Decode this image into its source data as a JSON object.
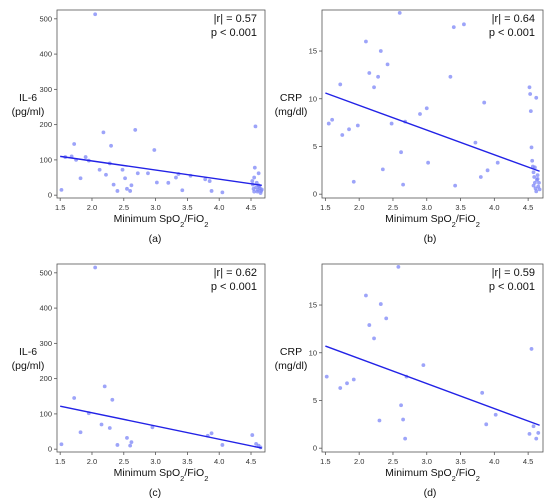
{
  "chart_data": [
    {
      "panel": "(a)",
      "type": "scatter",
      "xlabel": "Minimum SpO2/FiO2",
      "ylabel": "IL-6\n(pg/ml)",
      "xlim": [
        1.45,
        4.72
      ],
      "ylim": [
        -8,
        525
      ],
      "xticks": [
        1.5,
        2.0,
        2.5,
        3.0,
        3.5,
        4.0,
        4.5
      ],
      "yticks": [
        0,
        100,
        200,
        300,
        400,
        500
      ],
      "annotation": [
        "|r| = 0.57",
        "p < 0.001"
      ],
      "fit_line": {
        "x": [
          1.5,
          4.67
        ],
        "y": [
          110,
          28
        ]
      },
      "points": [
        [
          1.52,
          15
        ],
        [
          1.58,
          108
        ],
        [
          1.68,
          110
        ],
        [
          1.72,
          145
        ],
        [
          1.75,
          100
        ],
        [
          1.82,
          48
        ],
        [
          1.9,
          108
        ],
        [
          1.95,
          98
        ],
        [
          2.05,
          513
        ],
        [
          2.12,
          72
        ],
        [
          2.18,
          178
        ],
        [
          2.22,
          58
        ],
        [
          2.28,
          90
        ],
        [
          2.3,
          140
        ],
        [
          2.34,
          30
        ],
        [
          2.4,
          12
        ],
        [
          2.48,
          72
        ],
        [
          2.52,
          48
        ],
        [
          2.55,
          18
        ],
        [
          2.6,
          12
        ],
        [
          2.62,
          28
        ],
        [
          2.68,
          185
        ],
        [
          2.72,
          62
        ],
        [
          2.88,
          62
        ],
        [
          2.98,
          128
        ],
        [
          3.02,
          36
        ],
        [
          3.2,
          35
        ],
        [
          3.32,
          50
        ],
        [
          3.36,
          60
        ],
        [
          3.42,
          14
        ],
        [
          3.55,
          55
        ],
        [
          3.78,
          45
        ],
        [
          3.85,
          40
        ],
        [
          3.88,
          12
        ],
        [
          4.05,
          8
        ],
        [
          4.52,
          40
        ],
        [
          4.53,
          30
        ],
        [
          4.54,
          18
        ],
        [
          4.55,
          50
        ],
        [
          4.56,
          78
        ],
        [
          4.57,
          195
        ],
        [
          4.58,
          22
        ],
        [
          4.6,
          10
        ],
        [
          4.61,
          15
        ],
        [
          4.62,
          28
        ],
        [
          4.63,
          25
        ],
        [
          4.64,
          20
        ],
        [
          4.65,
          6
        ],
        [
          4.66,
          12
        ],
        [
          4.67,
          16
        ],
        [
          4.55,
          10
        ],
        [
          4.59,
          35
        ],
        [
          4.62,
          62
        ]
      ]
    },
    {
      "panel": "(b)",
      "type": "scatter",
      "xlabel": "Minimum SpO2/FiO2",
      "ylabel": "CRP\n(mg/dl)",
      "xlim": [
        1.45,
        4.72
      ],
      "ylim": [
        -0.4,
        19.3
      ],
      "xticks": [
        1.5,
        2.0,
        2.5,
        3.0,
        3.5,
        4.0,
        4.5
      ],
      "yticks": [
        0,
        5,
        10,
        15
      ],
      "annotation": [
        "|r| = 0.64",
        "p < 0.001"
      ],
      "fit_line": {
        "x": [
          1.5,
          4.67
        ],
        "y": [
          10.6,
          2.4
        ]
      },
      "points": [
        [
          1.55,
          7.4
        ],
        [
          1.6,
          7.8
        ],
        [
          1.72,
          11.5
        ],
        [
          1.75,
          6.2
        ],
        [
          1.85,
          6.8
        ],
        [
          1.92,
          1.3
        ],
        [
          1.98,
          7.2
        ],
        [
          2.1,
          16
        ],
        [
          2.15,
          12.7
        ],
        [
          2.22,
          11.2
        ],
        [
          2.28,
          12.3
        ],
        [
          2.32,
          15
        ],
        [
          2.35,
          2.6
        ],
        [
          2.42,
          13.6
        ],
        [
          2.48,
          7.4
        ],
        [
          2.6,
          19
        ],
        [
          2.62,
          4.4
        ],
        [
          2.65,
          1
        ],
        [
          2.68,
          7.6
        ],
        [
          2.9,
          8.4
        ],
        [
          3.0,
          9
        ],
        [
          3.02,
          3.3
        ],
        [
          3.35,
          12.3
        ],
        [
          3.4,
          17.5
        ],
        [
          3.42,
          0.9
        ],
        [
          3.55,
          17.8
        ],
        [
          3.72,
          5.4
        ],
        [
          3.8,
          1.8
        ],
        [
          3.85,
          9.6
        ],
        [
          3.9,
          2.5
        ],
        [
          4.05,
          3.3
        ],
        [
          4.52,
          11.2
        ],
        [
          4.53,
          10.5
        ],
        [
          4.54,
          8.7
        ],
        [
          4.55,
          4.9
        ],
        [
          4.56,
          3.5
        ],
        [
          4.57,
          2.9
        ],
        [
          4.58,
          2.3
        ],
        [
          4.59,
          1.8
        ],
        [
          4.6,
          1.2
        ],
        [
          4.61,
          0.6
        ],
        [
          4.62,
          0.3
        ],
        [
          4.63,
          1.5
        ],
        [
          4.64,
          2
        ],
        [
          4.65,
          0.8
        ],
        [
          4.66,
          1.2
        ],
        [
          4.67,
          0.5
        ],
        [
          4.58,
          0.9
        ],
        [
          4.6,
          2.8
        ],
        [
          4.62,
          10.1
        ],
        [
          4.64,
          1.6
        ]
      ]
    },
    {
      "panel": "(c)",
      "type": "scatter",
      "xlabel": "Minimum SpO2/FiO2",
      "ylabel": "IL-6\n(pg/ml)",
      "xlim": [
        1.45,
        4.72
      ],
      "ylim": [
        -8,
        525
      ],
      "xticks": [
        1.5,
        2.0,
        2.5,
        3.0,
        3.5,
        4.0,
        4.5
      ],
      "yticks": [
        0,
        100,
        200,
        300,
        400,
        500
      ],
      "annotation": [
        "|r| = 0.62",
        "p < 0.001"
      ],
      "fit_line": {
        "x": [
          1.5,
          4.67
        ],
        "y": [
          122,
          3
        ]
      },
      "points": [
        [
          1.52,
          14
        ],
        [
          1.72,
          145
        ],
        [
          1.82,
          48
        ],
        [
          1.95,
          102
        ],
        [
          2.05,
          515
        ],
        [
          2.15,
          70
        ],
        [
          2.2,
          178
        ],
        [
          2.28,
          60
        ],
        [
          2.32,
          140
        ],
        [
          2.4,
          12
        ],
        [
          2.55,
          32
        ],
        [
          2.6,
          10
        ],
        [
          2.62,
          20
        ],
        [
          2.95,
          62
        ],
        [
          3.82,
          38
        ],
        [
          3.88,
          45
        ],
        [
          4.05,
          12
        ],
        [
          4.52,
          40
        ],
        [
          4.58,
          15
        ],
        [
          4.62,
          10
        ],
        [
          4.65,
          5
        ]
      ]
    },
    {
      "panel": "(d)",
      "type": "scatter",
      "xlabel": "Minimum SpO2/FiO2",
      "ylabel": "CRP\n(mg/dl)",
      "xlim": [
        1.45,
        4.72
      ],
      "ylim": [
        -0.4,
        19.3
      ],
      "xticks": [
        1.5,
        2.0,
        2.5,
        3.0,
        3.5,
        4.0,
        4.5
      ],
      "yticks": [
        0,
        5,
        10,
        15
      ],
      "annotation": [
        "|r| = 0.59",
        "p < 0.001"
      ],
      "fit_line": {
        "x": [
          1.5,
          4.67
        ],
        "y": [
          10.7,
          2.4
        ]
      },
      "points": [
        [
          1.52,
          7.5
        ],
        [
          1.72,
          6.3
        ],
        [
          1.82,
          6.8
        ],
        [
          1.92,
          7.2
        ],
        [
          2.1,
          16
        ],
        [
          2.15,
          12.9
        ],
        [
          2.22,
          11.5
        ],
        [
          2.3,
          2.9
        ],
        [
          2.32,
          15.1
        ],
        [
          2.4,
          13.6
        ],
        [
          2.58,
          19
        ],
        [
          2.62,
          4.5
        ],
        [
          2.65,
          3
        ],
        [
          2.68,
          1
        ],
        [
          2.7,
          7.5
        ],
        [
          2.95,
          8.7
        ],
        [
          3.82,
          5.8
        ],
        [
          3.88,
          2.5
        ],
        [
          4.02,
          3.5
        ],
        [
          4.52,
          1.5
        ],
        [
          4.55,
          10.4
        ],
        [
          4.58,
          2.3
        ],
        [
          4.62,
          1
        ],
        [
          4.65,
          1.6
        ]
      ]
    }
  ],
  "colors": {
    "point": "#7c86f7",
    "line": "#2222e6"
  }
}
